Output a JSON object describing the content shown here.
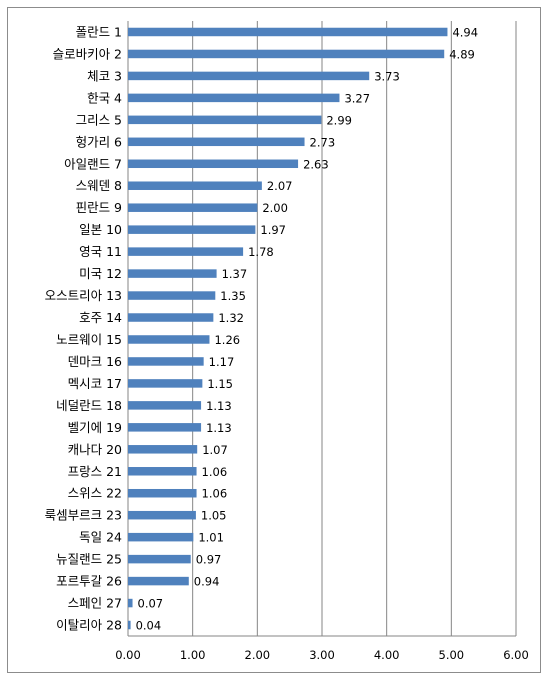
{
  "chart_data": {
    "type": "bar",
    "orientation": "horizontal",
    "title": "",
    "xlabel": "",
    "ylabel": "",
    "categories": [
      "폴란드 1",
      "슬로바키아 2",
      "체코 3",
      "한국 4",
      "그리스 5",
      "헝가리 6",
      "아일랜드 7",
      "스웨덴 8",
      "핀란드 9",
      "일본 10",
      "영국 11",
      "미국 12",
      "오스트리아 13",
      "호주 14",
      "노르웨이 15",
      "덴마크 16",
      "멕시코 17",
      "네덜란드 18",
      "벨기에 19",
      "캐나다 20",
      "프랑스 21",
      "스위스 22",
      "룩셈부르크 23",
      "독일 24",
      "뉴질랜드 25",
      "포르투갈 26",
      "스페인 27",
      "이탈리아 28"
    ],
    "values": [
      4.94,
      4.89,
      3.73,
      3.27,
      2.99,
      2.73,
      2.63,
      2.07,
      2.0,
      1.97,
      1.78,
      1.37,
      1.35,
      1.32,
      1.26,
      1.17,
      1.15,
      1.13,
      1.13,
      1.07,
      1.06,
      1.06,
      1.05,
      1.01,
      0.97,
      0.94,
      0.07,
      0.04
    ],
    "value_labels": [
      "4.94",
      "4.89",
      "3.73",
      "3.27",
      "2.99",
      "2.73",
      "2.63",
      "2.07",
      "2.00",
      "1.97",
      "1.78",
      "1.37",
      "1.35",
      "1.32",
      "1.26",
      "1.17",
      "1.15",
      "1.13",
      "1.13",
      "1.07",
      "1.06",
      "1.06",
      "1.05",
      "1.01",
      "0.97",
      "0.94",
      "0.07",
      "0.04"
    ],
    "xlim": [
      0,
      6
    ],
    "x_ticks": [
      "0.00",
      "1.00",
      "2.00",
      "3.00",
      "4.00",
      "5.00",
      "6.00"
    ],
    "grid": "vertical",
    "bar_color": "#4f81bd",
    "grid_color": "#868686"
  }
}
